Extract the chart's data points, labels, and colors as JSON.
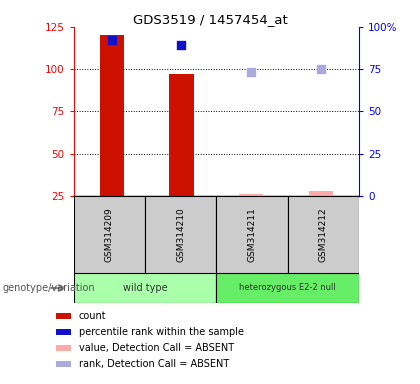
{
  "title": "GDS3519 / 1457454_at",
  "samples": [
    "GSM314209",
    "GSM314210",
    "GSM314211",
    "GSM314212"
  ],
  "bar_color": "#cc1100",
  "absent_bar_color": "#ffaaaa",
  "rank_color": "#1111cc",
  "absent_rank_color": "#aaaadd",
  "count_values": [
    120,
    97,
    26,
    28
  ],
  "rank_values": [
    92,
    89,
    73,
    75
  ],
  "absent_flags": [
    false,
    false,
    true,
    true
  ],
  "ylim_left": [
    25,
    125
  ],
  "ylim_right": [
    0,
    100
  ],
  "yticks_left": [
    25,
    50,
    75,
    100,
    125
  ],
  "ytick_labels_left": [
    "25",
    "50",
    "75",
    "100",
    "125"
  ],
  "yticks_right": [
    0,
    25,
    50,
    75,
    100
  ],
  "ytick_labels_right": [
    "0",
    "25",
    "50",
    "75",
    "100%"
  ],
  "bar_width": 0.35,
  "rank_marker_size": 30,
  "legend_items": [
    {
      "color": "#cc1100",
      "label": "count"
    },
    {
      "color": "#1111cc",
      "label": "percentile rank within the sample"
    },
    {
      "color": "#ffaaaa",
      "label": "value, Detection Call = ABSENT"
    },
    {
      "color": "#aaaadd",
      "label": "rank, Detection Call = ABSENT"
    }
  ],
  "genotype_label": "genotype/variation",
  "sample_bg_color": "#cccccc",
  "group_spans": [
    {
      "start": 0,
      "end": 2,
      "label": "wild type",
      "color": "#aaffaa"
    },
    {
      "start": 2,
      "end": 4,
      "label": "heterozygous E2-2 null",
      "color": "#66ee66"
    }
  ],
  "grid_lines": [
    50,
    75,
    100
  ]
}
